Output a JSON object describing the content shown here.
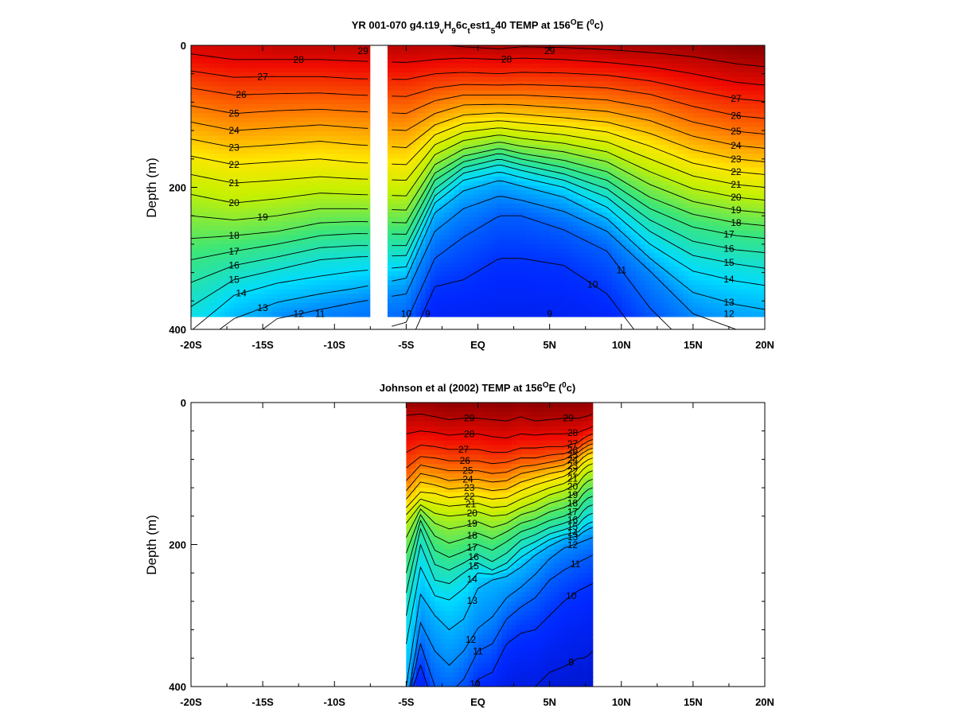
{
  "chart_data": [
    {
      "type": "heatmap",
      "title": {
        "main": "YR 001-070 g4.t19",
        "sub1": "v",
        "mid1": "H",
        "sub2": "9",
        "mid2": "6c",
        "sub3": "t",
        "mid3": "est1",
        "sub4": "5",
        "mid4": "40 TEMP at 156",
        "sup1": "O",
        "mid5": "E (",
        "sup2": "0",
        "end": "c)"
      },
      "ylabel": "Depth (m)",
      "x_range": [
        -20,
        20
      ],
      "y_range": [
        0,
        400
      ],
      "y_inverted": true,
      "data_depth_max": 382,
      "x_tick_values": [
        -20,
        -15,
        -10,
        -5,
        0,
        5,
        10,
        15,
        20
      ],
      "x_tick_labels": [
        "-20S",
        "-15S",
        "-10S",
        "-5S",
        "EQ",
        "5N",
        "10N",
        "15N",
        "20N"
      ],
      "y_tick_values": [
        0,
        200,
        400
      ],
      "y_tick_labels": [
        "0",
        "200",
        "400"
      ],
      "missing_lat_band": [
        -7.5,
        -6.3
      ],
      "color_range": [
        7,
        30
      ],
      "profile_lats": [
        -20,
        -17,
        -14,
        -11,
        -8.5,
        -5,
        -3,
        -1,
        1.5,
        3,
        6,
        9,
        12,
        15,
        18,
        20
      ],
      "contour_levels": [
        9,
        10,
        11,
        12,
        13,
        14,
        15,
        16,
        17,
        18,
        19,
        20,
        21,
        22,
        23,
        24,
        25,
        26,
        27,
        28,
        29
      ],
      "contour_depths": [
        [
          430,
          430,
          430,
          430,
          430,
          430,
          430,
          430,
          430,
          430,
          430,
          430,
          430,
          430,
          430,
          430
        ],
        [
          430,
          430,
          430,
          430,
          430,
          430,
          340,
          330,
          300,
          300,
          310,
          350,
          430,
          430,
          430,
          430
        ],
        [
          430,
          430,
          430,
          430,
          410,
          390,
          300,
          270,
          240,
          240,
          260,
          290,
          370,
          430,
          430,
          430
        ],
        [
          430,
          430,
          385,
          372,
          362,
          350,
          262,
          230,
          212,
          218,
          234,
          262,
          318,
          378,
          400,
          410
        ],
        [
          430,
          385,
          362,
          350,
          342,
          328,
          236,
          205,
          190,
          198,
          214,
          244,
          300,
          348,
          365,
          372
        ],
        [
          402,
          352,
          335,
          325,
          318,
          312,
          222,
          190,
          178,
          186,
          200,
          228,
          280,
          318,
          332,
          338
        ],
        [
          368,
          330,
          316,
          302,
          298,
          296,
          212,
          180,
          168,
          176,
          190,
          214,
          262,
          296,
          308,
          314
        ],
        [
          334,
          310,
          298,
          285,
          282,
          282,
          202,
          172,
          160,
          168,
          181,
          202,
          246,
          276,
          288,
          292
        ],
        [
          302,
          290,
          280,
          268,
          265,
          266,
          190,
          164,
          152,
          160,
          172,
          190,
          230,
          256,
          268,
          272
        ],
        [
          272,
          268,
          262,
          250,
          248,
          250,
          180,
          156,
          145,
          152,
          162,
          178,
          214,
          238,
          250,
          254
        ],
        [
          240,
          246,
          240,
          230,
          230,
          232,
          168,
          146,
          136,
          142,
          150,
          164,
          196,
          220,
          232,
          236
        ],
        [
          210,
          222,
          216,
          208,
          210,
          212,
          154,
          134,
          126,
          131,
          138,
          150,
          178,
          202,
          214,
          218
        ],
        [
          182,
          194,
          190,
          185,
          188,
          190,
          140,
          122,
          116,
          120,
          126,
          136,
          160,
          184,
          196,
          200
        ],
        [
          156,
          168,
          164,
          160,
          165,
          168,
          126,
          110,
          106,
          109,
          114,
          122,
          142,
          166,
          178,
          182
        ],
        [
          132,
          144,
          140,
          135,
          140,
          144,
          112,
          98,
          95,
          97,
          102,
          108,
          124,
          147,
          160,
          164
        ],
        [
          108,
          120,
          116,
          112,
          116,
          120,
          96,
          84,
          83,
          84,
          88,
          93,
          106,
          128,
          141,
          145
        ],
        [
          85,
          96,
          92,
          90,
          93,
          96,
          78,
          70,
          70,
          70,
          73,
          77,
          88,
          108,
          121,
          125
        ],
        [
          60,
          70,
          68,
          67,
          70,
          72,
          60,
          55,
          56,
          55,
          57,
          60,
          69,
          86,
          99,
          103
        ],
        [
          36,
          45,
          44,
          44,
          47,
          48,
          40,
          38,
          40,
          38,
          39,
          42,
          50,
          63,
          75,
          79
        ],
        [
          12,
          20,
          20,
          20,
          22,
          24,
          20,
          18,
          20,
          18,
          20,
          24,
          30,
          40,
          52,
          56
        ],
        [
          -30,
          -30,
          -4,
          -4,
          -3,
          0,
          -2,
          2,
          5,
          2,
          3,
          6,
          10,
          16,
          26,
          30
        ]
      ],
      "contour_label_text": [
        "9",
        "9",
        "10",
        "10",
        "11",
        "11",
        "12",
        "12",
        "13",
        "13",
        "14",
        "14",
        "15",
        "15",
        "16",
        "16",
        "17",
        "17",
        "18",
        "18",
        "19",
        "19",
        "20",
        "20",
        "21",
        "21",
        "22",
        "22",
        "23",
        "23",
        "24",
        "24",
        "25",
        "25",
        "26",
        "26",
        "27",
        "27",
        "28",
        "28",
        "29",
        "29"
      ],
      "contour_label_x": [
        -3.5,
        5.0,
        -5.0,
        8.0,
        -11.0,
        10.0,
        -12.5,
        17.5,
        -15.0,
        17.5,
        -16.5,
        17.5,
        -17.0,
        17.5,
        -17.0,
        17.5,
        -17.0,
        17.5,
        -17.0,
        18.0,
        -15.0,
        18.0,
        -17.0,
        18.0,
        -17.0,
        18.0,
        -17.0,
        18.0,
        -17.0,
        18.0,
        -17.0,
        18.0,
        -17.0,
        18.0,
        -16.5,
        18.0,
        -15.0,
        18.0,
        -12.5,
        2.0,
        -8.0,
        5.0
      ],
      "contour_label_dy": [
        0,
        0,
        0,
        0,
        0,
        0,
        0,
        0,
        0,
        0,
        0,
        0,
        0,
        0,
        0,
        0,
        0,
        0,
        0,
        0,
        0,
        0,
        0,
        0,
        0,
        0,
        0,
        0,
        0,
        0,
        0,
        0,
        0,
        0,
        0,
        0,
        0,
        0,
        0,
        0,
        0,
        0
      ]
    },
    {
      "type": "heatmap",
      "title": {
        "main": "Johnson et al (2002) TEMP at 156",
        "sup1": "O",
        "mid1": "E (",
        "sup2": "0",
        "end": "c)"
      },
      "ylabel": "Depth (m)",
      "x_range": [
        -20,
        20
      ],
      "y_range": [
        0,
        400
      ],
      "y_inverted": true,
      "data_lat_range": [
        -5,
        8
      ],
      "x_tick_values": [
        -20,
        -15,
        -10,
        -5,
        0,
        5,
        10,
        15,
        20
      ],
      "x_tick_labels": [
        "-20S",
        "-15S",
        "-10S",
        "-5S",
        "EQ",
        "5N",
        "10N",
        "15N",
        "20N"
      ],
      "y_tick_values": [
        0,
        200,
        400
      ],
      "y_tick_labels": [
        "0",
        "200",
        "400"
      ],
      "color_range": [
        7,
        30
      ],
      "profile_lats": [
        -5,
        -4,
        -3,
        -2,
        -1,
        0,
        1,
        2,
        3,
        4,
        5,
        6,
        7,
        7.5,
        8
      ],
      "contour_levels": [
        9,
        10,
        11,
        12,
        13,
        14,
        15,
        16,
        17,
        18,
        19,
        20,
        21,
        22,
        23,
        24,
        25,
        26,
        27,
        28,
        29
      ],
      "contour_depths": [
        [
          430,
          420,
          430,
          430,
          430,
          430,
          430,
          410,
          400,
          400,
          380,
          372,
          360,
          360,
          350
        ],
        [
          430,
          370,
          430,
          430,
          430,
          390,
          380,
          340,
          325,
          320,
          300,
          280,
          265,
          260,
          255
        ],
        [
          430,
          340,
          400,
          410,
          390,
          350,
          340,
          305,
          288,
          275,
          250,
          236,
          225,
          220,
          215
        ],
        [
          430,
          310,
          350,
          370,
          350,
          318,
          302,
          275,
          260,
          242,
          220,
          205,
          198,
          194,
          190
        ],
        [
          400,
          270,
          300,
          320,
          305,
          262,
          250,
          245,
          232,
          215,
          202,
          192,
          188,
          180,
          176
        ],
        [
          340,
          232,
          272,
          278,
          262,
          240,
          242,
          235,
          218,
          205,
          193,
          186,
          182,
          172,
          168
        ],
        [
          300,
          200,
          250,
          255,
          240,
          226,
          236,
          226,
          206,
          196,
          185,
          179,
          172,
          160,
          156
        ],
        [
          268,
          178,
          228,
          236,
          226,
          214,
          224,
          212,
          194,
          186,
          176,
          170,
          162,
          148,
          144
        ],
        [
          240,
          166,
          208,
          218,
          210,
          200,
          208,
          196,
          182,
          175,
          166,
          160,
          150,
          136,
          132
        ],
        [
          212,
          158,
          188,
          198,
          192,
          184,
          192,
          182,
          170,
          164,
          154,
          148,
          138,
          124,
          120
        ],
        [
          190,
          150,
          170,
          178,
          174,
          168,
          176,
          170,
          158,
          152,
          142,
          136,
          126,
          112,
          108
        ],
        [
          170,
          144,
          156,
          160,
          158,
          154,
          160,
          158,
          148,
          140,
          130,
          124,
          114,
          100,
          96
        ],
        [
          158,
          136,
          142,
          146,
          144,
          142,
          148,
          146,
          136,
          128,
          120,
          114,
          102,
          90,
          86
        ],
        [
          148,
          126,
          128,
          134,
          132,
          132,
          136,
          134,
          124,
          116,
          110,
          104,
          92,
          82,
          78
        ],
        [
          136,
          112,
          116,
          122,
          120,
          120,
          124,
          122,
          112,
          106,
          100,
          96,
          84,
          74,
          70
        ],
        [
          124,
          100,
          104,
          110,
          108,
          108,
          112,
          110,
          100,
          96,
          92,
          88,
          76,
          68,
          64
        ],
        [
          110,
          88,
          92,
          96,
          96,
          96,
          100,
          98,
          90,
          88,
          84,
          80,
          70,
          62,
          58
        ],
        [
          92,
          76,
          78,
          82,
          82,
          82,
          86,
          84,
          78,
          78,
          74,
          72,
          64,
          56,
          52
        ],
        [
          70,
          60,
          62,
          66,
          66,
          66,
          70,
          70,
          64,
          64,
          62,
          62,
          56,
          48,
          44
        ],
        [
          44,
          40,
          42,
          46,
          44,
          44,
          48,
          50,
          44,
          46,
          44,
          44,
          42,
          38,
          34
        ],
        [
          18,
          16,
          20,
          24,
          22,
          22,
          24,
          26,
          20,
          26,
          24,
          22,
          22,
          20,
          16
        ]
      ],
      "contour_label_text": [
        "9",
        "10",
        "11",
        "12",
        "13",
        "14",
        "15",
        "16",
        "17",
        "18",
        "19",
        "20",
        "21",
        "22",
        "23",
        "24",
        "25",
        "26",
        "27",
        "28",
        "29",
        "29",
        "9",
        "10",
        "11",
        "12",
        "13",
        "14",
        "15",
        "16",
        "17",
        "18",
        "19",
        "20",
        "21",
        "22",
        "23",
        "24",
        "25",
        "26",
        "27",
        "28"
      ],
      "contour_label_x": [
        6.5,
        -0.2,
        0.0,
        -0.5,
        -0.4,
        -0.4,
        -0.3,
        -0.3,
        -0.4,
        -0.4,
        -0.4,
        -0.4,
        -0.5,
        -0.6,
        -0.6,
        -0.7,
        -0.7,
        -0.9,
        -1.0,
        -0.6,
        -0.6,
        6.3,
        6.5,
        6.5,
        6.8,
        6.6,
        6.6,
        6.6,
        6.6,
        6.6,
        6.6,
        6.6,
        6.6,
        6.6,
        6.6,
        6.6,
        6.6,
        6.6,
        6.6,
        6.6,
        6.6,
        6.6
      ],
      "contour_label_dy": [
        0,
        0,
        0,
        0,
        0,
        0,
        0,
        0,
        0,
        0,
        0,
        0,
        0,
        0,
        0,
        0,
        0,
        0,
        0,
        0,
        0,
        0,
        0,
        0,
        0,
        0,
        0,
        0,
        0,
        0,
        0,
        0,
        0,
        0,
        0,
        0,
        0,
        0,
        0,
        0,
        0,
        0
      ]
    }
  ]
}
